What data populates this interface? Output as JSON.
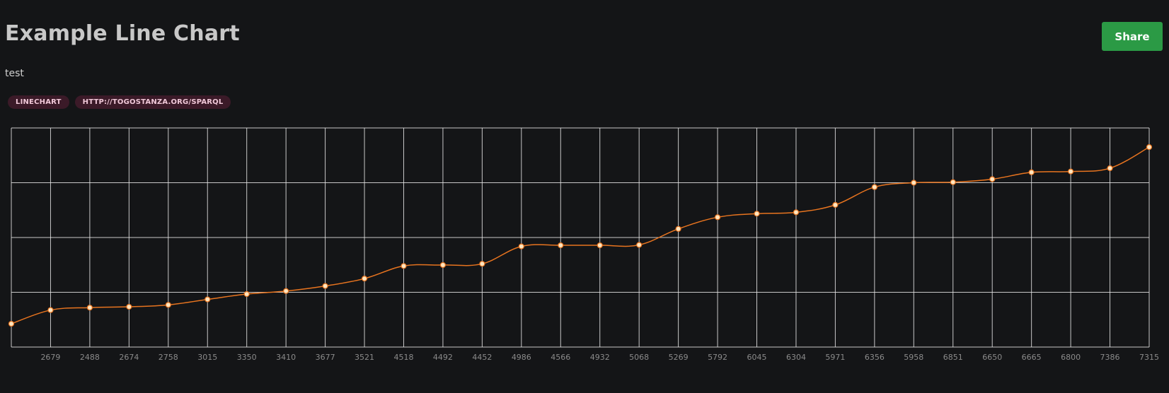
{
  "title": "Example Line Chart",
  "share_label": "Share",
  "description": "test",
  "tags": [
    "LINECHART",
    "HTTP://TOGOSTANZA.ORG/SPARQL"
  ],
  "colors": {
    "background": "#141517",
    "line": "#e8741f",
    "point_fill": "#ffe6c0",
    "grid": "#e6e6e6",
    "share_button": "#2b9a45",
    "tag_background": "#3b1a28"
  },
  "chart_data": {
    "type": "line",
    "title": "",
    "xlabel": "",
    "ylabel": "",
    "grid": true,
    "y_tick_labels_visible": false,
    "categories": [
      "",
      "2679",
      "2488",
      "2674",
      "2758",
      "3015",
      "3350",
      "3410",
      "3677",
      "3521",
      "4518",
      "4492",
      "4452",
      "4986",
      "4566",
      "4932",
      "5068",
      "5269",
      "5792",
      "6045",
      "6304",
      "5971",
      "6356",
      "5958",
      "6851",
      "6650",
      "6665",
      "6800",
      "7386",
      "7315"
    ],
    "values": [
      1.7,
      2.7,
      2.88,
      2.94,
      3.08,
      3.48,
      3.87,
      4.09,
      4.46,
      5.0,
      5.92,
      5.99,
      6.08,
      7.35,
      7.43,
      7.43,
      7.46,
      8.63,
      9.48,
      9.74,
      9.84,
      10.38,
      11.68,
      12.0,
      12.04,
      12.26,
      12.76,
      12.82,
      13.06,
      14.6
    ],
    "ylim": [
      0,
      16
    ]
  }
}
